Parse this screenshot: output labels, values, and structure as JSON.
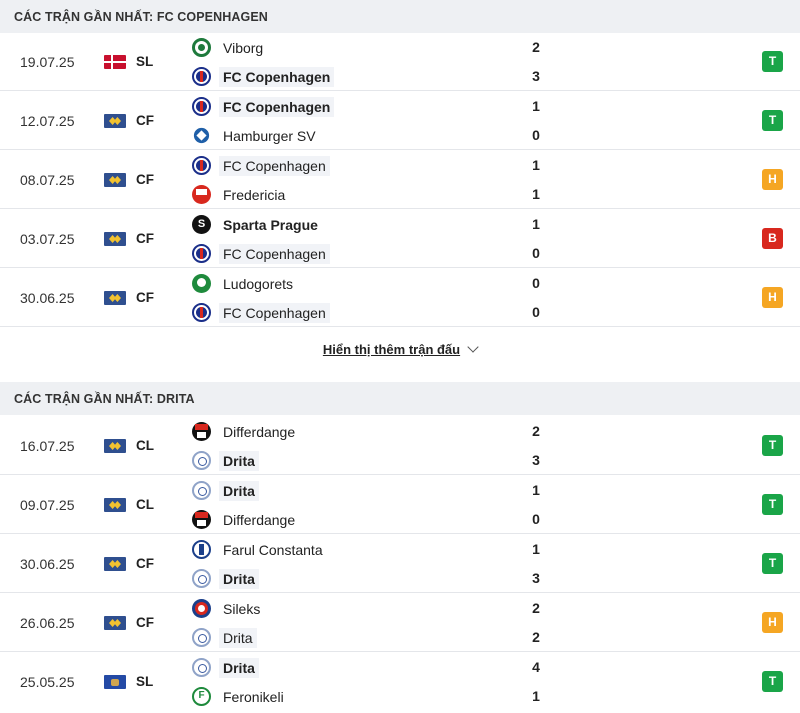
{
  "section1": {
    "title": "CÁC TRẬN GẦN NHẤT: FC COPENHAGEN",
    "matches": [
      {
        "date": "19.07.25",
        "flag": "denmark-flag",
        "comp": "SL",
        "home": {
          "name": "Viborg",
          "logo": "viborg-logo",
          "score": "2"
        },
        "away": {
          "name": "FC Copenhagen",
          "logo": "fc-copenhagen-logo",
          "score": "3"
        },
        "result": "T"
      },
      {
        "date": "12.07.25",
        "flag": "europe-flag",
        "comp": "CF",
        "home": {
          "name": "FC Copenhagen",
          "logo": "fc-copenhagen-logo",
          "score": "1"
        },
        "away": {
          "name": "Hamburger SV",
          "logo": "hamburger-sv-logo",
          "score": "0"
        },
        "result": "T"
      },
      {
        "date": "08.07.25",
        "flag": "europe-flag",
        "comp": "CF",
        "home": {
          "name": "FC Copenhagen",
          "logo": "fc-copenhagen-logo",
          "score": "1"
        },
        "away": {
          "name": "Fredericia",
          "logo": "fredericia-logo",
          "score": "1"
        },
        "result": "H"
      },
      {
        "date": "03.07.25",
        "flag": "europe-flag",
        "comp": "CF",
        "home": {
          "name": "Sparta Prague",
          "logo": "sparta-prague-logo",
          "score": "1"
        },
        "away": {
          "name": "FC Copenhagen",
          "logo": "fc-copenhagen-logo",
          "score": "0"
        },
        "result": "B"
      },
      {
        "date": "30.06.25",
        "flag": "europe-flag",
        "comp": "CF",
        "home": {
          "name": "Ludogorets",
          "logo": "ludogorets-logo",
          "score": "0"
        },
        "away": {
          "name": "FC Copenhagen",
          "logo": "fc-copenhagen-logo",
          "score": "0"
        },
        "result": "H"
      }
    ]
  },
  "show_more": {
    "label": "Hiển thị thêm trận đấu"
  },
  "section2": {
    "title": "CÁC TRẬN GẦN NHẤT: DRITA",
    "matches": [
      {
        "date": "16.07.25",
        "flag": "europe-flag",
        "comp": "CL",
        "home": {
          "name": "Differdange",
          "logo": "differdange-logo",
          "score": "2"
        },
        "away": {
          "name": "Drita",
          "logo": "drita-logo",
          "score": "3"
        },
        "result": "T"
      },
      {
        "date": "09.07.25",
        "flag": "europe-flag",
        "comp": "CL",
        "home": {
          "name": "Drita",
          "logo": "drita-logo",
          "score": "1"
        },
        "away": {
          "name": "Differdange",
          "logo": "differdange-logo",
          "score": "0"
        },
        "result": "T"
      },
      {
        "date": "30.06.25",
        "flag": "europe-flag",
        "comp": "CF",
        "home": {
          "name": "Farul Constanta",
          "logo": "farul-constanta-logo",
          "score": "1"
        },
        "away": {
          "name": "Drita",
          "logo": "drita-logo",
          "score": "3"
        },
        "result": "T"
      },
      {
        "date": "26.06.25",
        "flag": "europe-flag",
        "comp": "CF",
        "home": {
          "name": "Sileks",
          "logo": "sileks-logo",
          "score": "2"
        },
        "away": {
          "name": "Drita",
          "logo": "drita-logo",
          "score": "2"
        },
        "result": "H"
      },
      {
        "date": "25.05.25",
        "flag": "kosovo-flag",
        "comp": "SL",
        "home": {
          "name": "Drita",
          "logo": "drita-logo",
          "score": "4"
        },
        "away": {
          "name": "Feronikeli",
          "logo": "feronikeli-logo",
          "score": "1"
        },
        "result": "T"
      }
    ]
  },
  "colors": {
    "win": "#1aa548",
    "draw": "#f5a623",
    "loss": "#d8281e",
    "header_bg": "#eef0f3"
  }
}
